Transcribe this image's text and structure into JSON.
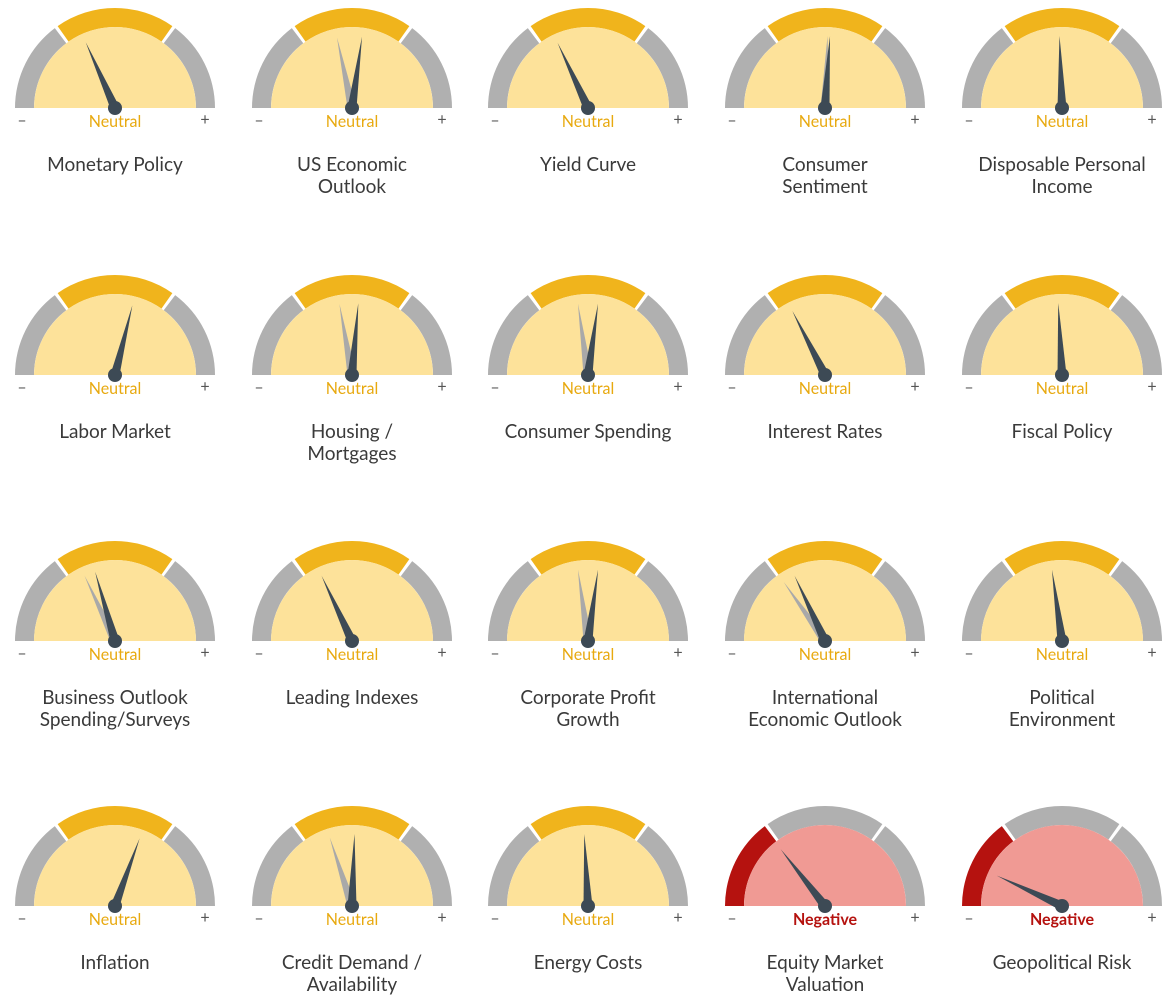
{
  "minus": "–",
  "plus": "+",
  "gauges": [
    {
      "label": [
        "Monetary Policy"
      ],
      "status": "Neutral",
      "needle": -24,
      "previous": null
    },
    {
      "label": [
        "US Economic",
        "Outlook"
      ],
      "status": "Neutral",
      "needle": 8,
      "previous": -12
    },
    {
      "label": [
        "Yield Curve"
      ],
      "status": "Neutral",
      "needle": -25,
      "previous": null
    },
    {
      "label": [
        "Consumer",
        "Sentiment"
      ],
      "status": "Neutral",
      "needle": 4,
      "previous": 2
    },
    {
      "label": [
        "Disposable Personal",
        "Income"
      ],
      "status": "Neutral",
      "needle": -2,
      "previous": null
    },
    {
      "label": [
        "Labor Market"
      ],
      "status": "Neutral",
      "needle": 14,
      "previous": null
    },
    {
      "label": [
        "Housing /",
        "Mortgages"
      ],
      "status": "Neutral",
      "needle": 5,
      "previous": -10
    },
    {
      "label": [
        "Consumer Spending"
      ],
      "status": "Neutral",
      "needle": 8,
      "previous": -8
    },
    {
      "label": [
        "Interest Rates"
      ],
      "status": "Neutral",
      "needle": -27,
      "previous": null
    },
    {
      "label": [
        "Fiscal Policy"
      ],
      "status": "Neutral",
      "needle": -3,
      "previous": null
    },
    {
      "label": [
        "Business Outlook",
        "Spending/Surveys"
      ],
      "status": "Neutral",
      "needle": -16,
      "previous": -25
    },
    {
      "label": [
        "Leading Indexes"
      ],
      "status": "Neutral",
      "needle": -25,
      "previous": null
    },
    {
      "label": [
        "Corporate Profit",
        "Growth"
      ],
      "status": "Neutral",
      "needle": 8,
      "previous": -8
    },
    {
      "label": [
        "International",
        "Economic Outlook"
      ],
      "status": "Neutral",
      "needle": -25,
      "previous": -35
    },
    {
      "label": [
        "Political",
        "Environment"
      ],
      "status": "Neutral",
      "needle": -8,
      "previous": null
    },
    {
      "label": [
        "Inflation"
      ],
      "status": "Neutral",
      "needle": 20,
      "previous": null
    },
    {
      "label": [
        "Credit Demand /",
        "Availability"
      ],
      "status": "Neutral",
      "needle": 2,
      "previous": -18
    },
    {
      "label": [
        "Energy Costs"
      ],
      "status": "Neutral",
      "needle": -3,
      "previous": null
    },
    {
      "label": [
        "Equity Market",
        "Valuation"
      ],
      "status": "Negative",
      "needle": -38,
      "previous": null
    },
    {
      "label": [
        "Geopolitical Risk"
      ],
      "status": "Negative",
      "needle": -65,
      "previous": null
    }
  ]
}
